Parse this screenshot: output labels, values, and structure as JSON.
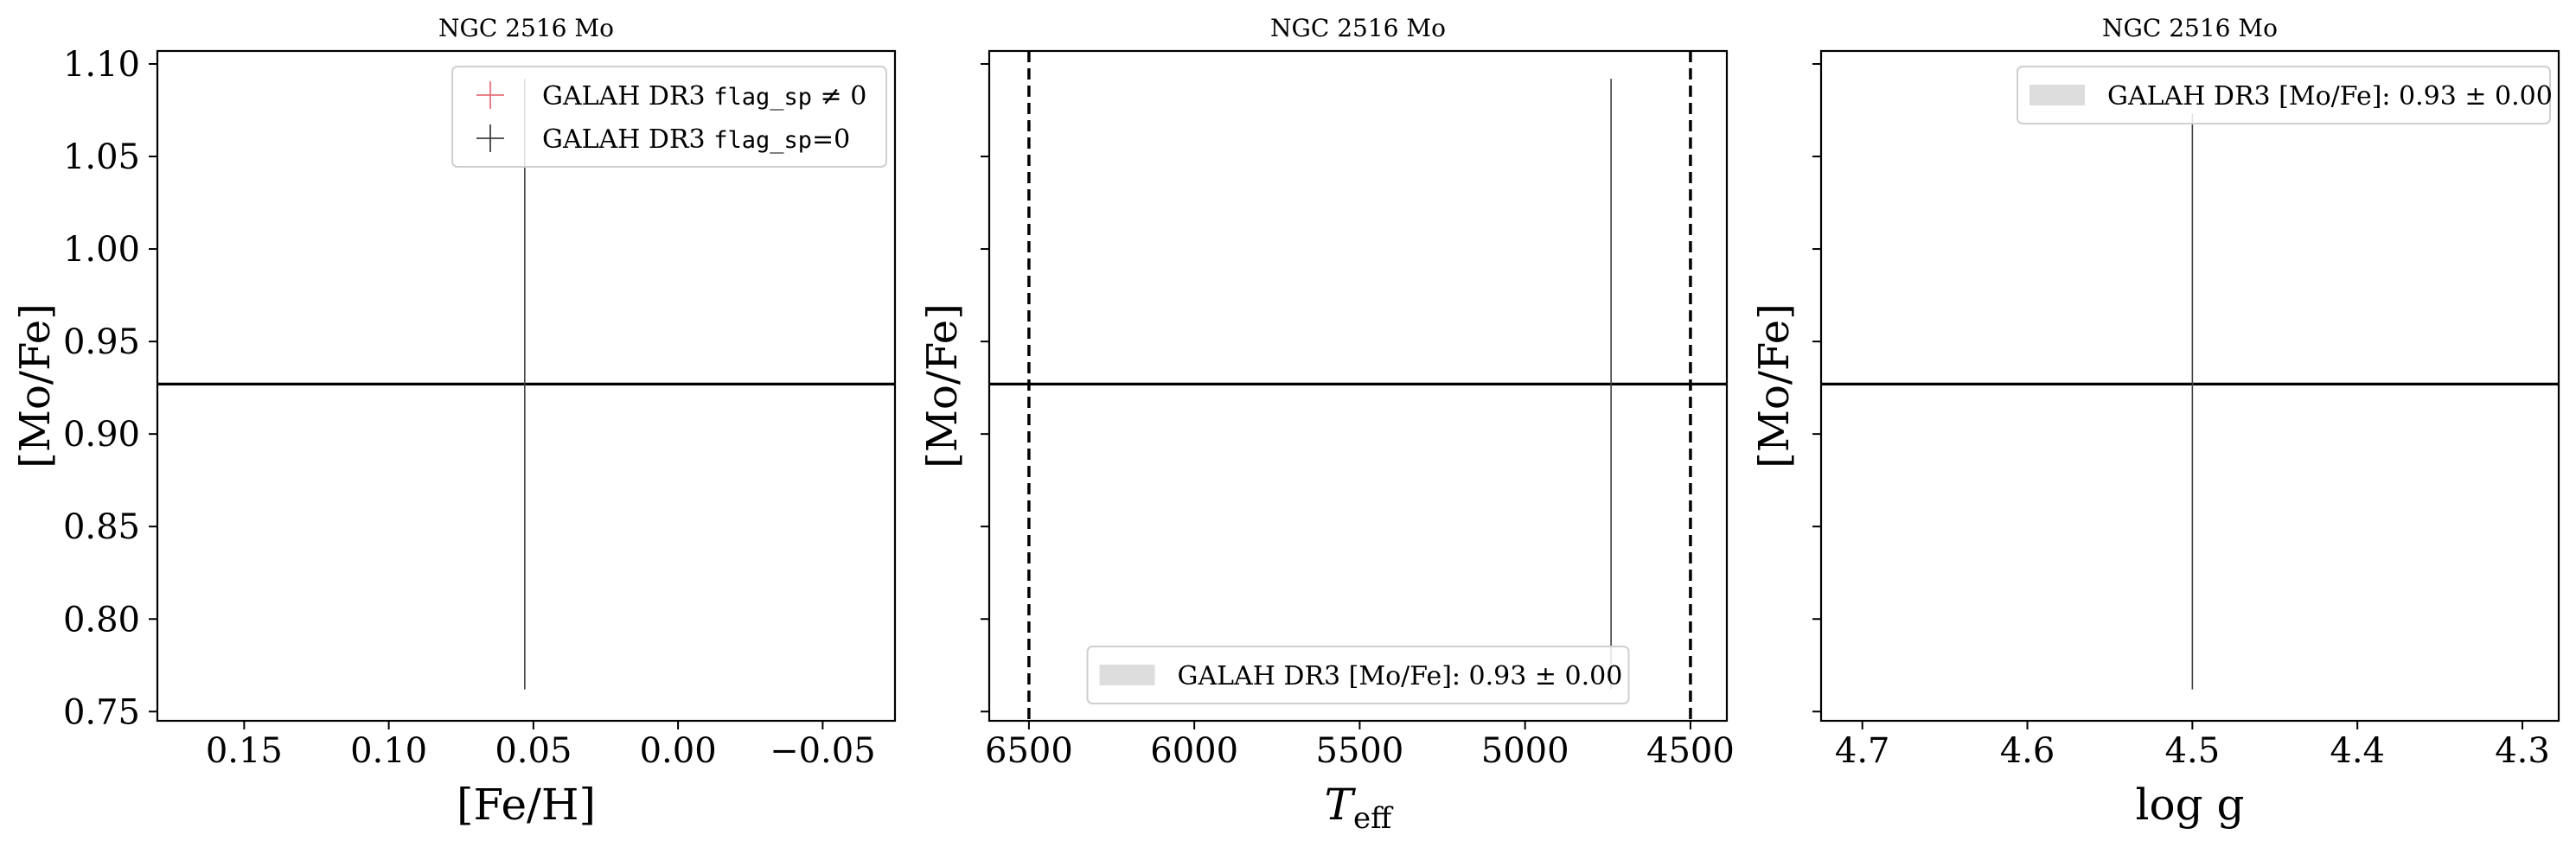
{
  "colors": {
    "data_line": "#404040",
    "mean_line": "#000000",
    "legend_red": "#e8707a",
    "legend_black": "#404040",
    "band_fill": "#dddddd",
    "legend_border": "#cfcfcf"
  },
  "chart_data": [
    {
      "type": "scatter",
      "title": "NGC 2516 Mo",
      "xlabel": "[Fe/H]",
      "ylabel": "[Mo/Fe]",
      "xlim": [
        0.18,
        -0.075
      ],
      "ylim": [
        0.745,
        1.107
      ],
      "x_inverted": true,
      "xticks": [
        {
          "value": 0.15,
          "label": "0.15"
        },
        {
          "value": 0.1,
          "label": "0.10"
        },
        {
          "value": 0.05,
          "label": "0.05"
        },
        {
          "value": 0.0,
          "label": "0.00"
        },
        {
          "value": -0.05,
          "label": "−0.05"
        }
      ],
      "yticks": [
        {
          "value": 0.75,
          "label": "0.75"
        },
        {
          "value": 0.8,
          "label": "0.80"
        },
        {
          "value": 0.85,
          "label": "0.85"
        },
        {
          "value": 0.9,
          "label": "0.90"
        },
        {
          "value": 0.95,
          "label": "0.95"
        },
        {
          "value": 1.0,
          "label": "1.00"
        },
        {
          "value": 1.05,
          "label": "1.05"
        },
        {
          "value": 1.1,
          "label": "1.10"
        }
      ],
      "show_ytick_labels": true,
      "mean_value": 0.927,
      "vlines": [],
      "points": [
        {
          "x": 0.053,
          "y": 0.927,
          "y_low": 0.762,
          "y_high": 1.092
        }
      ],
      "legend": {
        "placement": "top-right",
        "entries": [
          {
            "kind": "marker-red",
            "prefix": "GALAH DR3 ",
            "code": "flag_sp",
            "suffix": " ≠ 0"
          },
          {
            "kind": "marker-black",
            "prefix": "GALAH DR3 ",
            "code": "flag_sp",
            "suffix": "=0"
          }
        ]
      },
      "grid": false
    },
    {
      "type": "scatter",
      "title": "NGC 2516 Mo",
      "xlabel": "T",
      "xlabel_sub": "eff",
      "ylabel": "[Mo/Fe]",
      "xlim": [
        6620,
        4390
      ],
      "ylim": [
        0.745,
        1.107
      ],
      "x_inverted": true,
      "xticks": [
        {
          "value": 6500,
          "label": "6500"
        },
        {
          "value": 6000,
          "label": "6000"
        },
        {
          "value": 5500,
          "label": "5500"
        },
        {
          "value": 5000,
          "label": "5000"
        },
        {
          "value": 4500,
          "label": "4500"
        }
      ],
      "yticks": [
        {
          "value": 0.75,
          "label": "0.75"
        },
        {
          "value": 0.8,
          "label": "0.80"
        },
        {
          "value": 0.85,
          "label": "0.85"
        },
        {
          "value": 0.9,
          "label": "0.90"
        },
        {
          "value": 0.95,
          "label": "0.95"
        },
        {
          "value": 1.0,
          "label": "1.00"
        },
        {
          "value": 1.05,
          "label": "1.05"
        },
        {
          "value": 1.1,
          "label": "1.10"
        }
      ],
      "show_ytick_labels": false,
      "mean_value": 0.927,
      "vlines": [
        6500,
        4500
      ],
      "points": [
        {
          "x": 4740,
          "y": 0.927,
          "y_low": 0.762,
          "y_high": 1.092
        }
      ],
      "legend": {
        "placement": "bottom-center",
        "entries": [
          {
            "kind": "band",
            "prefix": "GALAH DR3 [Mo/Fe]: 0.93 ± 0.00",
            "code": "",
            "suffix": ""
          }
        ]
      },
      "grid": false
    },
    {
      "type": "scatter",
      "title": "NGC 2516 Mo",
      "xlabel": "log g",
      "ylabel": "[Mo/Fe]",
      "xlim": [
        4.725,
        4.278
      ],
      "ylim": [
        0.745,
        1.107
      ],
      "x_inverted": true,
      "xticks": [
        {
          "value": 4.7,
          "label": "4.7"
        },
        {
          "value": 4.6,
          "label": "4.6"
        },
        {
          "value": 4.5,
          "label": "4.5"
        },
        {
          "value": 4.4,
          "label": "4.4"
        },
        {
          "value": 4.3,
          "label": "4.3"
        }
      ],
      "yticks": [
        {
          "value": 0.75,
          "label": "0.75"
        },
        {
          "value": 0.8,
          "label": "0.80"
        },
        {
          "value": 0.85,
          "label": "0.85"
        },
        {
          "value": 0.9,
          "label": "0.90"
        },
        {
          "value": 0.95,
          "label": "0.95"
        },
        {
          "value": 1.0,
          "label": "1.00"
        },
        {
          "value": 1.05,
          "label": "1.05"
        },
        {
          "value": 1.1,
          "label": "1.10"
        }
      ],
      "show_ytick_labels": false,
      "mean_value": 0.927,
      "vlines": [],
      "points": [
        {
          "x": 4.5,
          "y": 0.927,
          "y_low": 0.762,
          "y_high": 1.073
        }
      ],
      "legend": {
        "placement": "top-right",
        "entries": [
          {
            "kind": "band",
            "prefix": "GALAH DR3 [Mo/Fe]: 0.93 ± 0.00",
            "code": "",
            "suffix": ""
          }
        ]
      },
      "grid": false
    }
  ]
}
